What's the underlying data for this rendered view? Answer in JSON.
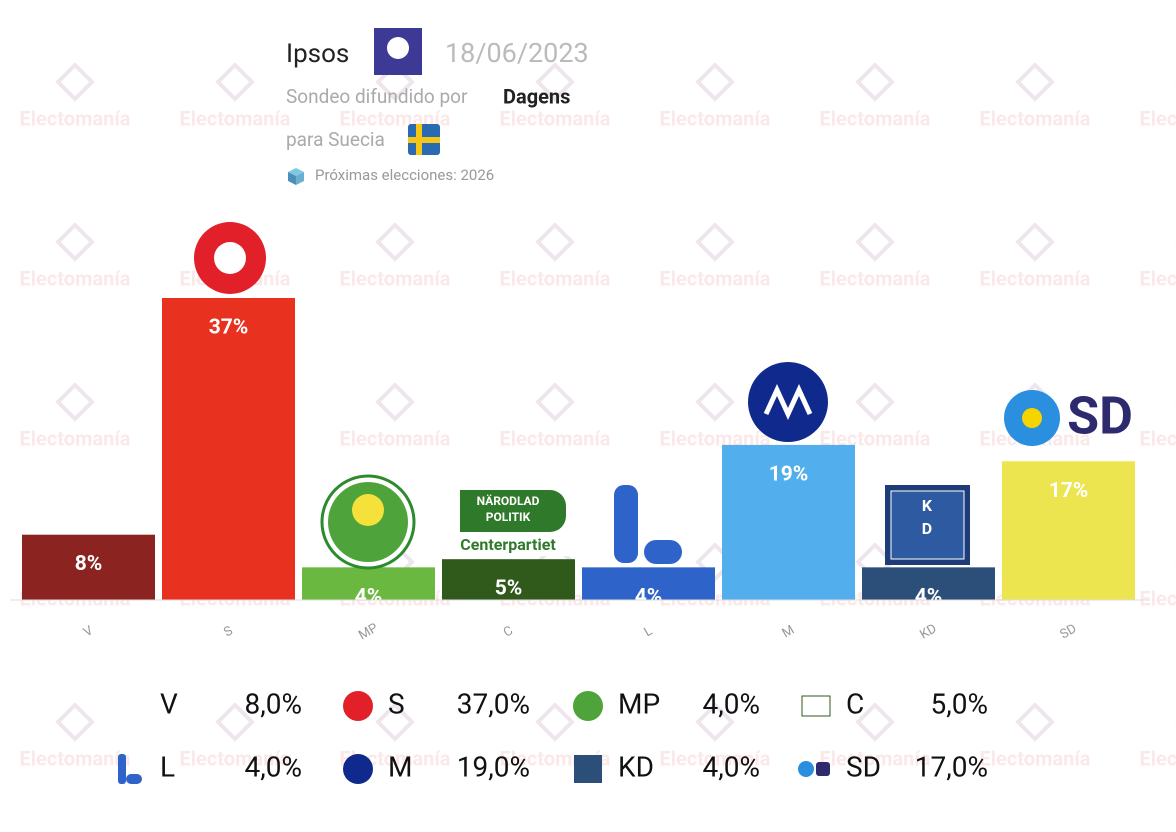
{
  "chart_data": {
    "type": "bar",
    "pollster": "Ipsos",
    "date": "18/06/2023",
    "source_prefix": "Sondeo difundido por",
    "source": "Dagens",
    "country": "para Suecia",
    "next_election": "Próximas elecciones: 2026",
    "watermark": "Electomanía",
    "categories": [
      "V",
      "S",
      "MP",
      "C",
      "L",
      "M",
      "KD",
      "SD"
    ],
    "values": [
      8,
      37,
      4,
      5,
      4,
      19,
      4,
      17
    ],
    "value_labels": [
      "8%",
      "37%",
      "4%",
      "5%",
      "4%",
      "19%",
      "4%",
      "17%"
    ],
    "colors": [
      "#8b2320",
      "#e8321f",
      "#6ab840",
      "#2f5a1c",
      "#2e63c9",
      "#52aeec",
      "#2c4f7a",
      "#ede550"
    ],
    "legend_value_labels": [
      "8,0%",
      "37,0%",
      "4,0%",
      "5,0%",
      "4,0%",
      "19,0%",
      "4,0%",
      "17,0%"
    ]
  }
}
